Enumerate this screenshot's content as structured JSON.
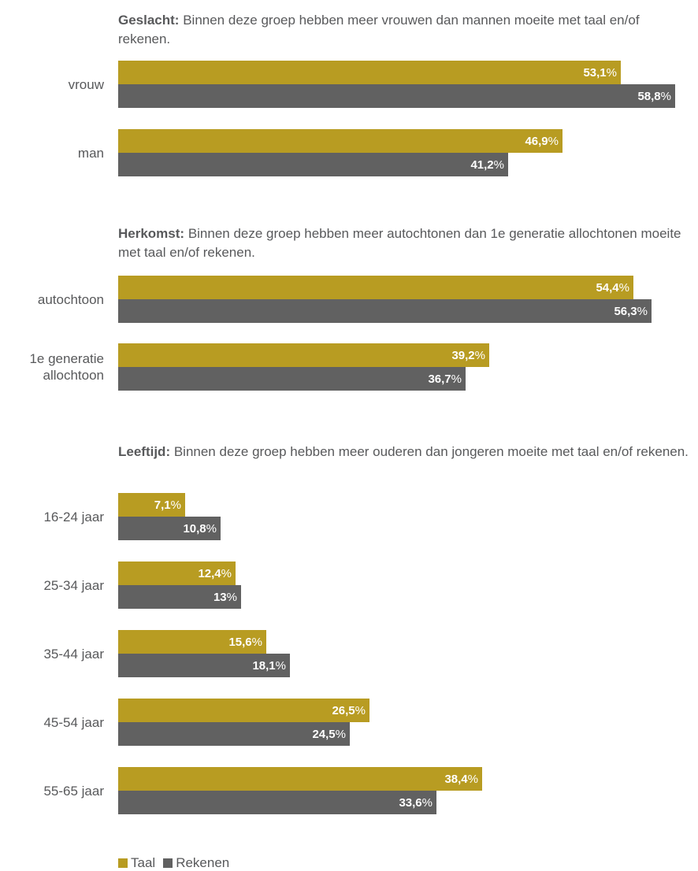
{
  "colors": {
    "taal": "#b89c22",
    "rekenen": "#616161",
    "text": "#58595b"
  },
  "chart_data": {
    "type": "bar",
    "orientation": "horizontal",
    "xlim": [
      0,
      60
    ],
    "unit": "%",
    "legend": {
      "placement": "bottom-left",
      "entries": [
        "Taal",
        "Rekenen"
      ]
    },
    "groups": [
      {
        "heading_bold": "Geslacht:",
        "heading_text": "Binnen deze groep hebben meer vrouwen dan mannen moeite met taal en/of rekenen.",
        "categories": [
          {
            "label": [
              "vrouw"
            ],
            "taal": 53.1,
            "rekenen": 58.8,
            "taal_label": "53,1",
            "rekenen_label": "58,8"
          },
          {
            "label": [
              "man"
            ],
            "taal": 46.9,
            "rekenen": 41.2,
            "taal_label": "46,9",
            "rekenen_label": "41,2"
          }
        ]
      },
      {
        "heading_bold": "Herkomst:",
        "heading_text": "Binnen deze groep hebben meer autochtonen dan 1e generatie allochtonen moeite met taal en/of rekenen.",
        "categories": [
          {
            "label": [
              "autochtoon"
            ],
            "taal": 54.4,
            "rekenen": 56.3,
            "taal_label": "54,4",
            "rekenen_label": "56,3"
          },
          {
            "label": [
              "1e generatie",
              "allochtoon"
            ],
            "taal": 39.2,
            "rekenen": 36.7,
            "taal_label": "39,2",
            "rekenen_label": "36,7"
          }
        ]
      },
      {
        "heading_bold": "Leeftijd:",
        "heading_text": "Binnen deze groep hebben meer ouderen dan jongeren moeite met taal en/of rekenen.",
        "categories": [
          {
            "label": [
              "16-24 jaar"
            ],
            "taal": 7.1,
            "rekenen": 10.8,
            "taal_label": "7,1",
            "rekenen_label": "10,8"
          },
          {
            "label": [
              "25-34 jaar"
            ],
            "taal": 12.4,
            "rekenen": 13,
            "taal_label": "12,4",
            "rekenen_label": "13"
          },
          {
            "label": [
              "35-44 jaar"
            ],
            "taal": 15.6,
            "rekenen": 18.1,
            "taal_label": "15,6",
            "rekenen_label": "18,1"
          },
          {
            "label": [
              "45-54 jaar"
            ],
            "taal": 26.5,
            "rekenen": 24.5,
            "taal_label": "26,5",
            "rekenen_label": "24,5"
          },
          {
            "label": [
              "55-65 jaar"
            ],
            "taal": 38.4,
            "rekenen": 33.6,
            "taal_label": "38,4",
            "rekenen_label": "33,6"
          }
        ]
      }
    ]
  }
}
